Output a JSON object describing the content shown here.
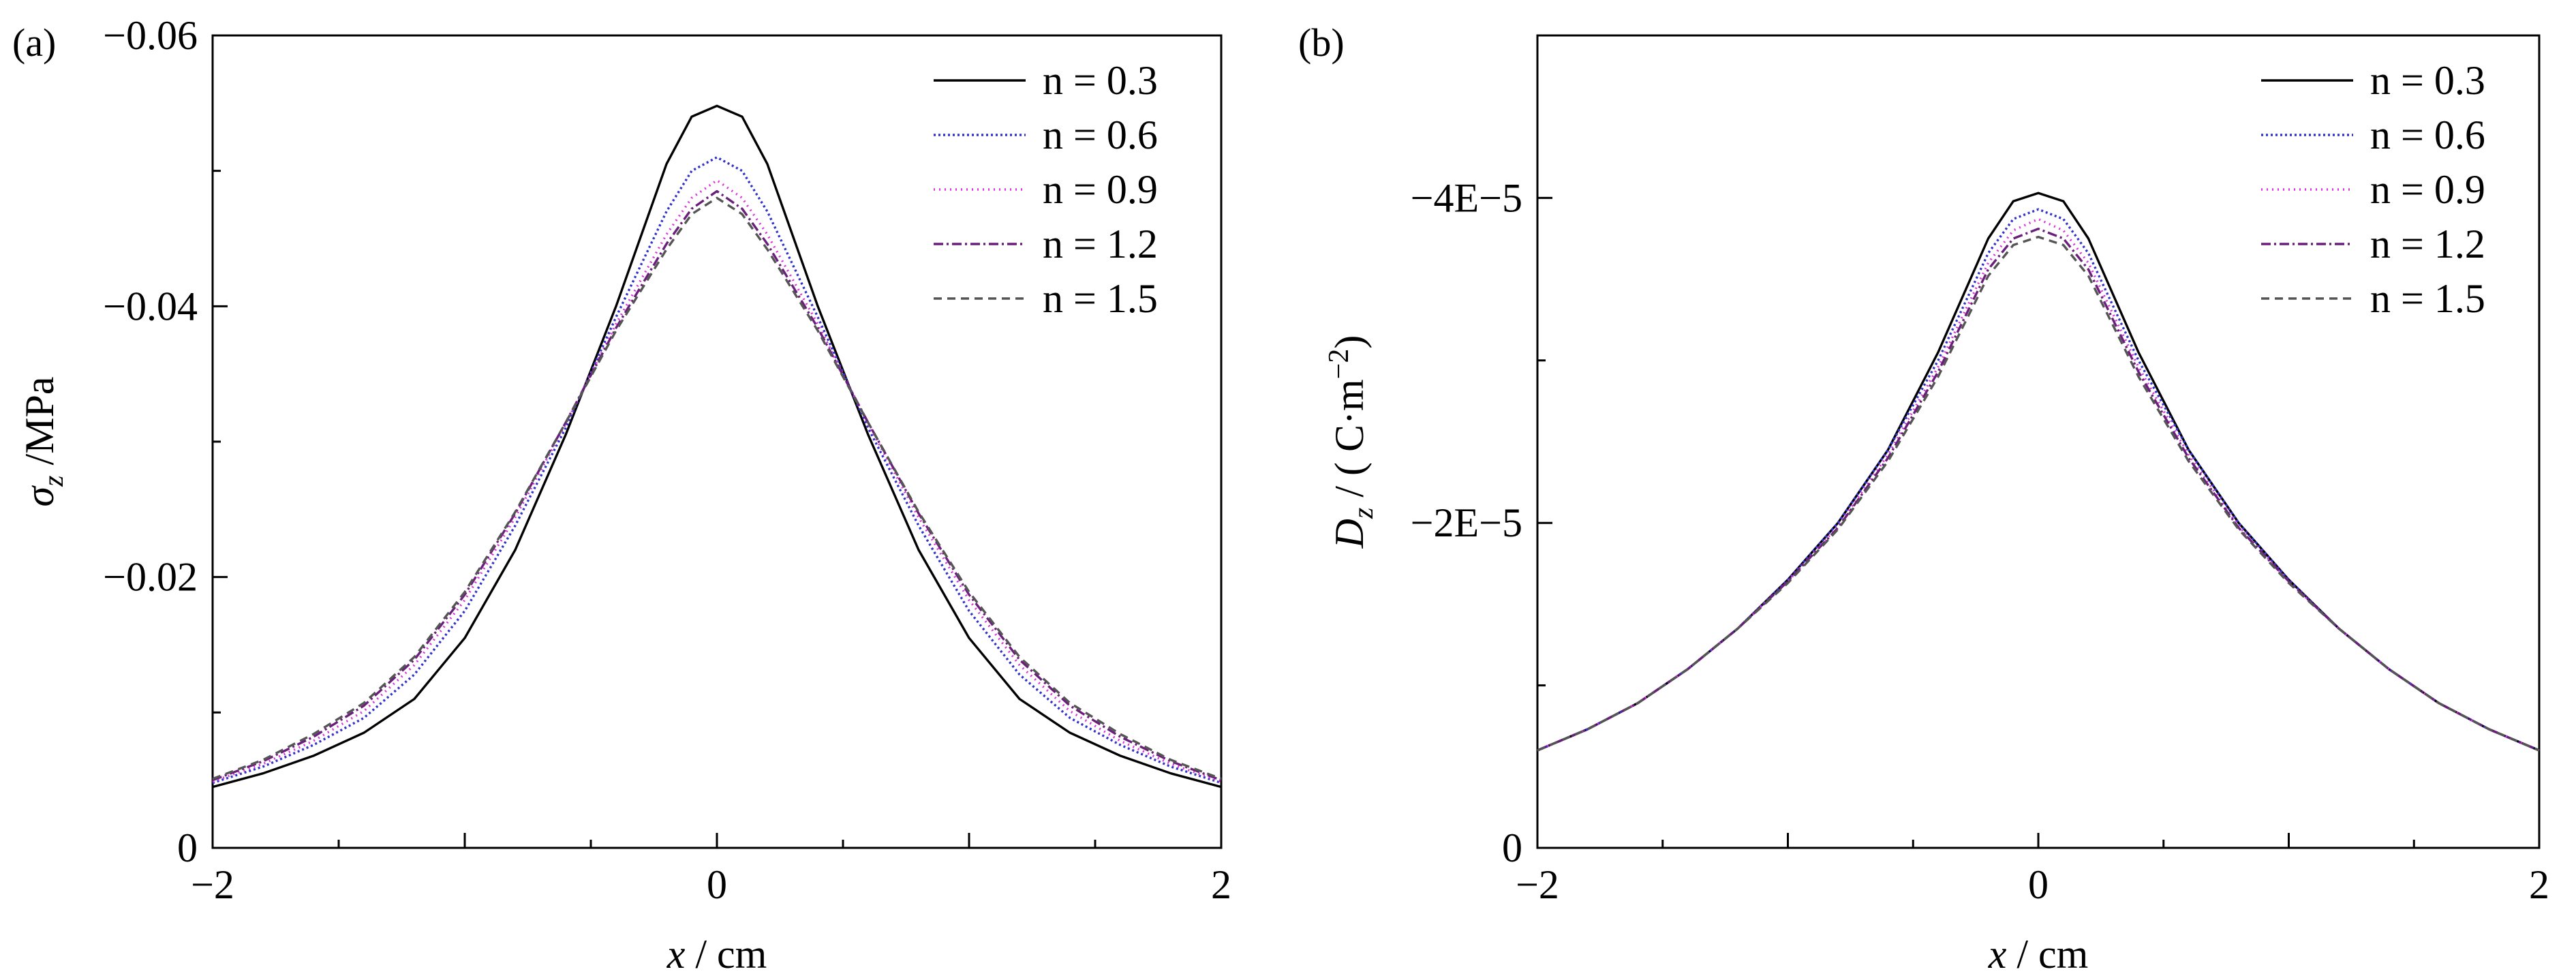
{
  "chart_data": [
    {
      "panel_label": "(a)",
      "type": "line",
      "xlabel_var": "x",
      "xlabel_unit": " / cm",
      "ylabel_var": "σ",
      "ylabel_sub": "z",
      "ylabel_unit": " /MPa",
      "xlim": [
        -2,
        2
      ],
      "ylim": [
        0,
        -0.06
      ],
      "y_inverted": true,
      "xticks": [
        -2,
        0,
        2
      ],
      "xtick_labels": [
        "−2",
        "0",
        "2"
      ],
      "yticks": [
        0,
        -0.02,
        -0.04,
        -0.06
      ],
      "ytick_labels": [
        "0",
        "−0.02",
        "−0.04",
        "−0.06"
      ],
      "legend_position": "top-right",
      "series": [
        {
          "name": "n = 0.3",
          "color": "#000000",
          "dash": "",
          "x": [
            -2,
            -1.8,
            -1.6,
            -1.4,
            -1.2,
            -1.0,
            -0.8,
            -0.6,
            -0.4,
            -0.2,
            -0.1,
            0,
            0.1,
            0.2,
            0.4,
            0.6,
            0.8,
            1.0,
            1.2,
            1.4,
            1.6,
            1.8,
            2
          ],
          "y": [
            -0.0045,
            -0.0055,
            -0.0068,
            -0.0085,
            -0.011,
            -0.0155,
            -0.022,
            -0.0305,
            -0.04,
            -0.0505,
            -0.054,
            -0.0548,
            -0.054,
            -0.0505,
            -0.04,
            -0.0305,
            -0.022,
            -0.0155,
            -0.011,
            -0.0085,
            -0.0068,
            -0.0055,
            -0.0045
          ]
        },
        {
          "name": "n = 0.6",
          "color": "#3333cc",
          "dash": "3 4",
          "x": [
            -2,
            -1.8,
            -1.6,
            -1.4,
            -1.2,
            -1.0,
            -0.8,
            -0.6,
            -0.4,
            -0.2,
            -0.1,
            0,
            0.1,
            0.2,
            0.4,
            0.6,
            0.8,
            1.0,
            1.2,
            1.4,
            1.6,
            1.8,
            2
          ],
          "y": [
            -0.0048,
            -0.006,
            -0.0076,
            -0.0096,
            -0.0128,
            -0.0175,
            -0.0238,
            -0.031,
            -0.0392,
            -0.047,
            -0.05,
            -0.051,
            -0.05,
            -0.047,
            -0.0392,
            -0.031,
            -0.0238,
            -0.0175,
            -0.0128,
            -0.0096,
            -0.0076,
            -0.006,
            -0.0048
          ]
        },
        {
          "name": "n = 0.9",
          "color": "#dd33dd",
          "dash": "2 6",
          "x": [
            -2,
            -1.8,
            -1.6,
            -1.4,
            -1.2,
            -1.0,
            -0.8,
            -0.6,
            -0.4,
            -0.2,
            -0.1,
            0,
            0.1,
            0.2,
            0.4,
            0.6,
            0.8,
            1.0,
            1.2,
            1.4,
            1.6,
            1.8,
            2
          ],
          "y": [
            -0.0049,
            -0.0062,
            -0.0079,
            -0.0101,
            -0.0135,
            -0.0183,
            -0.0244,
            -0.0313,
            -0.0387,
            -0.0453,
            -0.048,
            -0.0493,
            -0.048,
            -0.0453,
            -0.0387,
            -0.0313,
            -0.0244,
            -0.0183,
            -0.0135,
            -0.0101,
            -0.0079,
            -0.0062,
            -0.0049
          ]
        },
        {
          "name": "n = 1.2",
          "color": "#6a1f7a",
          "dash": "14 5 3 5",
          "x": [
            -2,
            -1.8,
            -1.6,
            -1.4,
            -1.2,
            -1.0,
            -0.8,
            -0.6,
            -0.4,
            -0.2,
            -0.1,
            0,
            0.1,
            0.2,
            0.4,
            0.6,
            0.8,
            1.0,
            1.2,
            1.4,
            1.6,
            1.8,
            2
          ],
          "y": [
            -0.005,
            -0.0064,
            -0.0082,
            -0.0105,
            -0.0139,
            -0.0187,
            -0.0247,
            -0.0314,
            -0.0384,
            -0.0446,
            -0.0472,
            -0.0485,
            -0.0472,
            -0.0446,
            -0.0384,
            -0.0314,
            -0.0247,
            -0.0187,
            -0.0139,
            -0.0105,
            -0.0082,
            -0.0064,
            -0.005
          ]
        },
        {
          "name": "n = 1.5",
          "color": "#555555",
          "dash": "12 8",
          "x": [
            -2,
            -1.8,
            -1.6,
            -1.4,
            -1.2,
            -1.0,
            -0.8,
            -0.6,
            -0.4,
            -0.2,
            -0.1,
            0,
            0.1,
            0.2,
            0.4,
            0.6,
            0.8,
            1.0,
            1.2,
            1.4,
            1.6,
            1.8,
            2
          ],
          "y": [
            -0.0051,
            -0.0065,
            -0.0084,
            -0.0107,
            -0.0141,
            -0.0189,
            -0.0248,
            -0.0314,
            -0.0382,
            -0.0442,
            -0.0468,
            -0.048,
            -0.0468,
            -0.0442,
            -0.0382,
            -0.0314,
            -0.0248,
            -0.0189,
            -0.0141,
            -0.0107,
            -0.0084,
            -0.0065,
            -0.0051
          ]
        }
      ]
    },
    {
      "panel_label": "(b)",
      "type": "line",
      "xlabel_var": "x",
      "xlabel_unit": " / cm",
      "ylabel_var": "D",
      "ylabel_sub": "z",
      "ylabel_unit_pre": " / ( C·m",
      "ylabel_unit_sup": "−2",
      "ylabel_unit_post": ")",
      "xlim": [
        -2,
        2
      ],
      "ylim": [
        0,
        -5e-05
      ],
      "y_inverted": true,
      "xticks": [
        -2,
        0,
        2
      ],
      "xtick_labels": [
        "−2",
        "0",
        "2"
      ],
      "yticks": [
        0,
        -2e-05,
        -4e-05
      ],
      "ytick_labels": [
        "0",
        "−2E−5",
        "−4E−5"
      ],
      "legend_position": "top-right",
      "series": [
        {
          "name": "n = 0.3",
          "color": "#000000",
          "dash": "",
          "x": [
            -2,
            -1.8,
            -1.6,
            -1.4,
            -1.2,
            -1.0,
            -0.8,
            -0.6,
            -0.4,
            -0.2,
            -0.1,
            0,
            0.1,
            0.2,
            0.4,
            0.6,
            0.8,
            1.0,
            1.2,
            1.4,
            1.6,
            1.8,
            2
          ],
          "y": [
            -6e-06,
            -7.3e-06,
            -8.9e-06,
            -1.1e-05,
            -1.35e-05,
            -1.65e-05,
            -2e-05,
            -2.45e-05,
            -3.05e-05,
            -3.75e-05,
            -3.98e-05,
            -4.03e-05,
            -3.98e-05,
            -3.75e-05,
            -3.05e-05,
            -2.45e-05,
            -2e-05,
            -1.65e-05,
            -1.35e-05,
            -1.1e-05,
            -8.9e-06,
            -7.3e-06,
            -6e-06
          ]
        },
        {
          "name": "n = 0.6",
          "color": "#3333cc",
          "dash": "3 4",
          "x": [
            -2,
            -1.8,
            -1.6,
            -1.4,
            -1.2,
            -1.0,
            -0.8,
            -0.6,
            -0.4,
            -0.2,
            -0.1,
            0,
            0.1,
            0.2,
            0.4,
            0.6,
            0.8,
            1.0,
            1.2,
            1.4,
            1.6,
            1.8,
            2
          ],
          "y": [
            -6e-06,
            -7.3e-06,
            -8.9e-06,
            -1.1e-05,
            -1.35e-05,
            -1.65e-05,
            -2e-05,
            -2.45e-05,
            -3e-05,
            -3.66e-05,
            -3.87e-05,
            -3.93e-05,
            -3.87e-05,
            -3.66e-05,
            -3e-05,
            -2.45e-05,
            -2e-05,
            -1.65e-05,
            -1.35e-05,
            -1.1e-05,
            -8.9e-06,
            -7.3e-06,
            -6e-06
          ]
        },
        {
          "name": "n = 0.9",
          "color": "#dd33dd",
          "dash": "2 6",
          "x": [
            -2,
            -1.8,
            -1.6,
            -1.4,
            -1.2,
            -1.0,
            -0.8,
            -0.6,
            -0.4,
            -0.2,
            -0.1,
            0,
            0.1,
            0.2,
            0.4,
            0.6,
            0.8,
            1.0,
            1.2,
            1.4,
            1.6,
            1.8,
            2
          ],
          "y": [
            -6e-06,
            -7.3e-06,
            -8.9e-06,
            -1.1e-05,
            -1.35e-05,
            -1.64e-05,
            -1.98e-05,
            -2.42e-05,
            -2.96e-05,
            -3.6e-05,
            -3.8e-05,
            -3.87e-05,
            -3.8e-05,
            -3.6e-05,
            -2.96e-05,
            -2.42e-05,
            -1.98e-05,
            -1.64e-05,
            -1.35e-05,
            -1.1e-05,
            -8.9e-06,
            -7.3e-06,
            -6e-06
          ]
        },
        {
          "name": "n = 1.2",
          "color": "#6a1f7a",
          "dash": "14 5 3 5",
          "x": [
            -2,
            -1.8,
            -1.6,
            -1.4,
            -1.2,
            -1.0,
            -0.8,
            -0.6,
            -0.4,
            -0.2,
            -0.1,
            0,
            0.1,
            0.2,
            0.4,
            0.6,
            0.8,
            1.0,
            1.2,
            1.4,
            1.6,
            1.8,
            2
          ],
          "y": [
            -6e-06,
            -7.3e-06,
            -8.9e-06,
            -1.1e-05,
            -1.35e-05,
            -1.64e-05,
            -1.97e-05,
            -2.4e-05,
            -2.93e-05,
            -3.56e-05,
            -3.75e-05,
            -3.81e-05,
            -3.75e-05,
            -3.56e-05,
            -2.93e-05,
            -2.4e-05,
            -1.97e-05,
            -1.64e-05,
            -1.35e-05,
            -1.1e-05,
            -8.9e-06,
            -7.3e-06,
            -6e-06
          ]
        },
        {
          "name": "n = 1.5",
          "color": "#555555",
          "dash": "12 8",
          "x": [
            -2,
            -1.8,
            -1.6,
            -1.4,
            -1.2,
            -1.0,
            -0.8,
            -0.6,
            -0.4,
            -0.2,
            -0.1,
            0,
            0.1,
            0.2,
            0.4,
            0.6,
            0.8,
            1.0,
            1.2,
            1.4,
            1.6,
            1.8,
            2
          ],
          "y": [
            -6e-06,
            -7.3e-06,
            -8.9e-06,
            -1.1e-05,
            -1.35e-05,
            -1.63e-05,
            -1.96e-05,
            -2.38e-05,
            -2.9e-05,
            -3.52e-05,
            -3.71e-05,
            -3.76e-05,
            -3.71e-05,
            -3.52e-05,
            -2.9e-05,
            -2.38e-05,
            -1.96e-05,
            -1.63e-05,
            -1.35e-05,
            -1.1e-05,
            -8.9e-06,
            -7.3e-06,
            -6e-06
          ]
        }
      ]
    }
  ]
}
